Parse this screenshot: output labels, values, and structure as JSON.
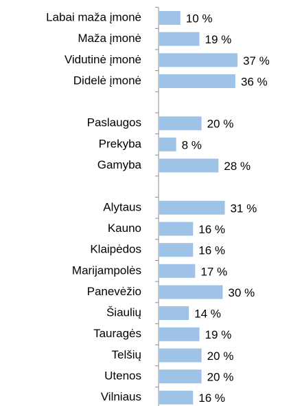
{
  "chart_data": {
    "type": "bar",
    "orientation": "horizontal",
    "color": "#9fc3e7",
    "categories": [
      "Labai maža įmonė",
      "Maža įmonė",
      "Vidutinė įmonė",
      "Didelė įmonė",
      null,
      "Paslaugos",
      "Prekyba",
      "Gamyba",
      null,
      "Alytaus",
      "Kauno",
      "Klaipėdos",
      "Marijampolės",
      "Panevėžio",
      "Šiaulių",
      "Tauragės",
      "Telšių",
      "Utenos",
      "Vilniaus"
    ],
    "values": [
      10,
      19,
      37,
      36,
      null,
      20,
      8,
      28,
      null,
      31,
      16,
      16,
      17,
      30,
      14,
      19,
      20,
      20,
      16
    ],
    "value_labels": [
      "10 %",
      "19 %",
      "37 %",
      "36 %",
      null,
      "20 %",
      "8 %",
      "28 %",
      null,
      "31 %",
      "16 %",
      "16 %",
      "17 %",
      "30 %",
      "14 %",
      "19 %",
      "20 %",
      "20 %",
      "16 %"
    ]
  }
}
